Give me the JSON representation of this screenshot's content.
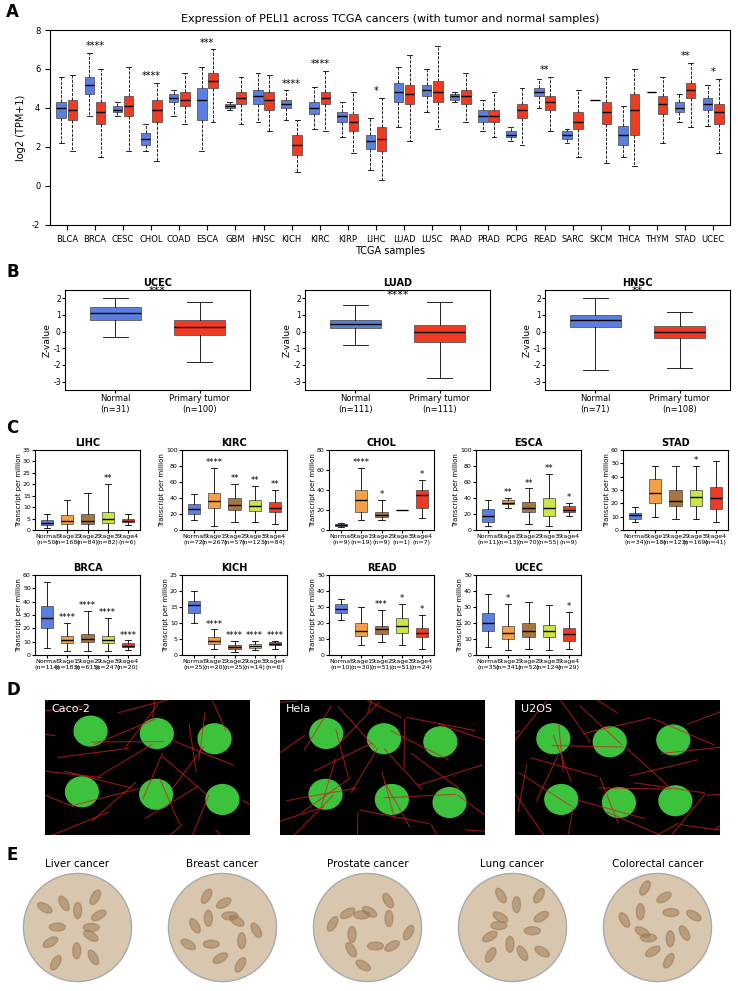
{
  "panel_labels": [
    "A",
    "B",
    "C",
    "D",
    "E"
  ],
  "chart_data": [
    {
      "type": "box",
      "title": "Expression of PELI1 across TCGA cancers (with tumor and normal samples)",
      "xlabel": "TCGA samples",
      "ylabel": "log2 (TPM+1)",
      "ylim": [
        -2,
        8
      ],
      "yticks": [
        -2,
        0,
        2,
        4,
        6,
        8
      ],
      "categories": [
        "BLCA",
        "BRCA",
        "CESC",
        "CHOL",
        "COAD",
        "ESCA",
        "GBM",
        "HNSC",
        "KICH",
        "KIRC",
        "KIRP",
        "LIHC",
        "LUAD",
        "LUSC",
        "PAAD",
        "PRAD",
        "PCPG",
        "READ",
        "SARC",
        "SKCM",
        "THCA",
        "THYM",
        "STAD",
        "UCEC"
      ],
      "significance": [
        null,
        "****",
        null,
        "****",
        null,
        "***",
        null,
        null,
        "****",
        "****",
        null,
        "*",
        null,
        null,
        null,
        null,
        null,
        "**",
        null,
        null,
        null,
        null,
        "**",
        "*"
      ],
      "series": [
        {
          "color": "#5b7fe0",
          "boxes": [
            [
              2.2,
              3.5,
              4.0,
              4.3,
              5.6
            ],
            [
              3.6,
              4.7,
              5.2,
              5.6,
              6.8
            ],
            [
              3.6,
              3.8,
              3.9,
              4.1,
              4.3
            ],
            [
              1.8,
              2.1,
              2.4,
              2.7,
              3.2
            ],
            [
              3.6,
              4.3,
              4.5,
              4.7,
              4.9
            ],
            [
              1.8,
              3.4,
              4.4,
              5.0,
              6.1
            ],
            [
              3.9,
              4.0,
              4.1,
              4.2,
              4.3
            ],
            [
              3.3,
              4.2,
              4.6,
              4.9,
              5.8
            ],
            [
              3.4,
              4.0,
              4.2,
              4.4,
              4.9
            ],
            [
              2.9,
              3.7,
              4.0,
              4.3,
              5.1
            ],
            [
              2.5,
              3.3,
              3.6,
              3.8,
              4.3
            ],
            [
              0.8,
              1.9,
              2.3,
              2.6,
              3.5
            ],
            [
              3.0,
              4.3,
              4.8,
              5.3,
              6.1
            ],
            [
              3.8,
              4.6,
              4.9,
              5.2,
              6.0
            ],
            [
              4.3,
              4.4,
              4.6,
              4.7,
              4.8
            ],
            [
              2.8,
              3.3,
              3.6,
              3.9,
              4.4
            ],
            [
              2.3,
              2.5,
              2.6,
              2.8,
              3.0
            ],
            [
              4.0,
              4.6,
              4.8,
              5.0,
              5.5
            ],
            [
              2.2,
              2.4,
              2.6,
              2.8,
              2.9
            ],
            [
              4.4,
              4.4,
              4.4,
              4.4,
              4.4
            ],
            [
              1.5,
              2.1,
              2.6,
              3.1,
              4.1
            ],
            [
              4.8,
              4.8,
              4.8,
              4.8,
              4.8
            ],
            [
              3.3,
              3.8,
              4.0,
              4.3,
              4.7
            ],
            [
              3.1,
              3.9,
              4.2,
              4.5,
              5.2
            ]
          ]
        },
        {
          "color": "#ee3b22",
          "boxes": [
            [
              1.8,
              3.4,
              3.9,
              4.4,
              5.7
            ],
            [
              1.5,
              3.2,
              3.8,
              4.3,
              6.0
            ],
            [
              1.8,
              3.6,
              4.1,
              4.6,
              6.1
            ],
            [
              1.3,
              3.3,
              3.9,
              4.4,
              5.3
            ],
            [
              3.2,
              4.1,
              4.4,
              4.8,
              5.8
            ],
            [
              3.3,
              5.0,
              5.4,
              5.8,
              7.0
            ],
            [
              3.2,
              4.2,
              4.5,
              4.8,
              5.6
            ],
            [
              2.8,
              3.9,
              4.4,
              4.8,
              5.7
            ],
            [
              0.7,
              1.6,
              2.1,
              2.6,
              3.4
            ],
            [
              2.8,
              4.2,
              4.5,
              4.8,
              5.9
            ],
            [
              1.7,
              2.8,
              3.3,
              3.7,
              4.8
            ],
            [
              0.3,
              1.8,
              2.4,
              3.0,
              4.5
            ],
            [
              2.3,
              4.2,
              4.7,
              5.2,
              6.7
            ],
            [
              2.9,
              4.3,
              4.8,
              5.4,
              7.2
            ],
            [
              3.3,
              4.2,
              4.6,
              4.9,
              5.8
            ],
            [
              2.5,
              3.3,
              3.6,
              3.9,
              4.8
            ],
            [
              2.1,
              3.5,
              3.9,
              4.2,
              5.0
            ],
            [
              2.8,
              3.9,
              4.3,
              4.6,
              5.6
            ],
            [
              1.5,
              2.9,
              3.3,
              3.8,
              4.9
            ],
            [
              1.2,
              3.2,
              3.8,
              4.3,
              5.6
            ],
            [
              1.0,
              2.6,
              3.9,
              4.7,
              6.0
            ],
            [
              2.2,
              3.7,
              4.2,
              4.6,
              5.6
            ],
            [
              3.0,
              4.5,
              4.9,
              5.3,
              6.3
            ],
            [
              1.7,
              3.2,
              3.8,
              4.2,
              5.5
            ]
          ]
        }
      ]
    },
    {
      "type": "box",
      "title": "UCEC",
      "ylabel": "Z-value",
      "ylim": [
        -3.5,
        2.5
      ],
      "yticks": [
        -3,
        -2,
        -1,
        0,
        1,
        2
      ],
      "categories": [
        "Normal\n(n=31)",
        "Primary tumor\n(n=100)"
      ],
      "colors": [
        "#5b7fe0",
        "#ee3b22"
      ],
      "boxes": [
        [
          -0.3,
          0.7,
          1.1,
          1.5,
          2.0
        ],
        [
          -1.8,
          -0.2,
          0.3,
          0.7,
          1.8
        ]
      ],
      "significance": "***"
    },
    {
      "type": "box",
      "title": "LUAD",
      "ylabel": "Z-value",
      "ylim": [
        -3.5,
        2.5
      ],
      "yticks": [
        -3,
        -2,
        -1,
        0,
        1,
        2
      ],
      "categories": [
        "Normal\n(n=111)",
        "Primary tumor\n(n=111)"
      ],
      "colors": [
        "#5b7fe0",
        "#ee3b22"
      ],
      "boxes": [
        [
          -0.8,
          0.2,
          0.45,
          0.7,
          1.6
        ],
        [
          -2.8,
          -0.6,
          -0.05,
          0.4,
          1.8
        ]
      ],
      "significance": "****"
    },
    {
      "type": "box",
      "title": "HNSC",
      "ylabel": "Z-value",
      "ylim": [
        -3.5,
        2.5
      ],
      "yticks": [
        -3,
        -2,
        -1,
        0,
        1,
        2
      ],
      "categories": [
        "Normal\n(n=71)",
        "Primary tumor\n(n=108)"
      ],
      "colors": [
        "#5b7fe0",
        "#ee3b22"
      ],
      "boxes": [
        [
          -2.3,
          0.3,
          0.7,
          1.0,
          2.0
        ],
        [
          -2.2,
          -0.4,
          0.0,
          0.35,
          1.2
        ]
      ],
      "significance": "**"
    },
    {
      "type": "box",
      "title": "LIHC",
      "ylabel": "Transcript per million",
      "ylim": [
        0,
        35
      ],
      "yticks": [
        0,
        5,
        10,
        15,
        20,
        25,
        30,
        35
      ],
      "categories": [
        "Normal\n(n=50)",
        "Stage1\n(n=168)",
        "Stage2\n(n=84)",
        "Stage3\n(n=82)",
        "Stage4\n(n=6)"
      ],
      "colors": [
        "#5b7fe0",
        "#f5a046",
        "#a8743f",
        "#cde446",
        "#ee3b22"
      ],
      "boxes": [
        [
          1,
          2,
          3,
          4.5,
          7
        ],
        [
          0,
          2.5,
          4,
          6.5,
          13
        ],
        [
          0,
          2.5,
          4,
          7,
          16
        ],
        [
          0,
          3,
          5,
          8,
          20
        ],
        [
          2,
          3.5,
          4,
          5,
          7
        ]
      ],
      "significance": [
        null,
        null,
        null,
        "**",
        null
      ]
    },
    {
      "type": "box",
      "title": "KIRC",
      "ylabel": "Transcript per million",
      "ylim": [
        0,
        100
      ],
      "yticks": [
        0,
        20,
        40,
        60,
        80,
        100
      ],
      "categories": [
        "Normal\n(n=72)",
        "Stage1\n(n=267)",
        "Stage2\n(n=57)",
        "Stage3\n(n=123)",
        "Stage4\n(n=84)"
      ],
      "colors": [
        "#5b7fe0",
        "#f5a046",
        "#a8743f",
        "#cde446",
        "#ee3b22"
      ],
      "boxes": [
        [
          12,
          20,
          26,
          32,
          45
        ],
        [
          5,
          28,
          36,
          46,
          78
        ],
        [
          10,
          25,
          31,
          40,
          58
        ],
        [
          10,
          24,
          30,
          38,
          55
        ],
        [
          8,
          22,
          28,
          35,
          50
        ]
      ],
      "significance": [
        null,
        "****",
        "**",
        "**",
        "**"
      ]
    },
    {
      "type": "box",
      "title": "CHOL",
      "ylabel": "Transcript per million",
      "ylim": [
        0,
        80
      ],
      "yticks": [
        0,
        20,
        40,
        60,
        80
      ],
      "categories": [
        "Normal\n(n=9)",
        "Stage1\n(n=19)",
        "Stage2\n(n=9)",
        "Stage3\n(n=1)",
        "Stage4\n(n=7)"
      ],
      "colors": [
        "#5b7fe0",
        "#f5a046",
        "#a8743f",
        "#cde446",
        "#ee3b22"
      ],
      "boxes": [
        [
          3,
          4,
          5,
          6,
          7
        ],
        [
          10,
          18,
          30,
          40,
          62
        ],
        [
          10,
          13,
          15,
          18,
          30
        ],
        [
          20,
          20,
          20,
          20,
          20
        ],
        [
          12,
          22,
          35,
          40,
          50
        ]
      ],
      "significance": [
        null,
        "****",
        "*",
        null,
        "*"
      ]
    },
    {
      "type": "box",
      "title": "ESCA",
      "ylabel": "Transcript per million",
      "ylim": [
        0,
        100
      ],
      "yticks": [
        0,
        20,
        40,
        60,
        80,
        100
      ],
      "categories": [
        "Normal\n(n=11)",
        "Stage1\n(n=13)",
        "Stage2\n(n=70)",
        "Stage3\n(n=55)",
        "Stage4\n(n=9)"
      ],
      "colors": [
        "#5b7fe0",
        "#f5a046",
        "#a8743f",
        "#cde446",
        "#ee3b22"
      ],
      "boxes": [
        [
          5,
          10,
          18,
          26,
          38
        ],
        [
          28,
          32,
          34,
          38,
          40
        ],
        [
          8,
          22,
          28,
          35,
          52
        ],
        [
          5,
          18,
          28,
          40,
          70
        ],
        [
          18,
          22,
          25,
          30,
          34
        ]
      ],
      "significance": [
        null,
        "**",
        "**",
        "**",
        "*"
      ]
    },
    {
      "type": "box",
      "title": "STAD",
      "ylabel": "Transcript per million",
      "ylim": [
        0,
        60
      ],
      "yticks": [
        0,
        10,
        20,
        30,
        40,
        50,
        60
      ],
      "categories": [
        "Normal\n(n=34)",
        "Stage1\n(n=18)",
        "Stage2\n(n=123)",
        "Stage3\n(n=169)",
        "Stage4\n(n=41)"
      ],
      "colors": [
        "#5b7fe0",
        "#f5a046",
        "#a8743f",
        "#cde446",
        "#ee3b22"
      ],
      "boxes": [
        [
          6,
          8,
          11,
          13,
          17
        ],
        [
          10,
          20,
          28,
          38,
          48
        ],
        [
          8,
          18,
          22,
          30,
          48
        ],
        [
          8,
          18,
          25,
          30,
          48
        ],
        [
          6,
          16,
          24,
          32,
          52
        ]
      ],
      "significance": [
        null,
        null,
        null,
        "*",
        null
      ]
    },
    {
      "type": "box",
      "title": "BRCA",
      "ylabel": "Transcript per million",
      "ylim": [
        0,
        60
      ],
      "yticks": [
        0,
        10,
        20,
        30,
        40,
        50,
        60
      ],
      "categories": [
        "Normal\n(n=114)",
        "Stage1\n(n=183)",
        "Stage2\n(n=615)",
        "Stage3\n(n=247)",
        "Stage4\n(n=20)"
      ],
      "colors": [
        "#5b7fe0",
        "#f5a046",
        "#a8743f",
        "#cde446",
        "#ee3b22"
      ],
      "boxes": [
        [
          5,
          20,
          28,
          37,
          55
        ],
        [
          3,
          9,
          11,
          14,
          24
        ],
        [
          3,
          10,
          12,
          16,
          33
        ],
        [
          3,
          9,
          11,
          14,
          28
        ],
        [
          4,
          6,
          7,
          9,
          11
        ]
      ],
      "significance": [
        null,
        "****",
        "****",
        "****",
        "****"
      ]
    },
    {
      "type": "box",
      "title": "KICH",
      "ylabel": "Transcript per million",
      "ylim": [
        0,
        25
      ],
      "yticks": [
        0,
        5,
        10,
        15,
        20,
        25
      ],
      "categories": [
        "Normal\n(n=25)",
        "Stage1\n(n=20)",
        "Stage2\n(n=25)",
        "Stage3\n(n=14)",
        "Stage4\n(n=6)"
      ],
      "colors": [
        "#5b7fe0",
        "#f5a046",
        "#a8743f",
        "#cde446",
        "#ee3b22"
      ],
      "boxes": [
        [
          10,
          13,
          15.5,
          17,
          20
        ],
        [
          2,
          3.5,
          4.5,
          5.5,
          8
        ],
        [
          1,
          2,
          2.5,
          3,
          4.5
        ],
        [
          1.5,
          2.2,
          2.8,
          3.3,
          4.5
        ],
        [
          2,
          3,
          3.5,
          4,
          4.5
        ]
      ],
      "significance": [
        null,
        "****",
        "****",
        "****",
        "****"
      ]
    },
    {
      "type": "box",
      "title": "READ",
      "ylabel": "Transcript per million",
      "ylim": [
        0,
        50
      ],
      "yticks": [
        0,
        10,
        20,
        30,
        40,
        50
      ],
      "categories": [
        "Normal\n(n=10)",
        "Stage1\n(n=30)",
        "Stage2\n(n=51)",
        "Stage3\n(n=51)",
        "Stage4\n(n=24)"
      ],
      "colors": [
        "#5b7fe0",
        "#f5a046",
        "#a8743f",
        "#cde446",
        "#ee3b22"
      ],
      "boxes": [
        [
          22,
          26,
          29,
          32,
          35
        ],
        [
          6,
          12,
          15,
          20,
          30
        ],
        [
          8,
          13,
          16,
          18,
          28
        ],
        [
          6,
          14,
          18,
          23,
          32
        ],
        [
          4,
          11,
          14,
          17,
          25
        ]
      ],
      "significance": [
        null,
        null,
        "***",
        "*",
        "*"
      ]
    },
    {
      "type": "box",
      "title": "UCEC",
      "ylabel": "Transcript per million",
      "ylim": [
        0,
        50
      ],
      "yticks": [
        0,
        10,
        20,
        30,
        40,
        50
      ],
      "categories": [
        "Normal\n(n=35)",
        "Stage1\n(n=341)",
        "Stage2\n(n=52)",
        "Stage3\n(n=124)",
        "Stage4\n(n=29)"
      ],
      "colors": [
        "#5b7fe0",
        "#f5a046",
        "#a8743f",
        "#cde446",
        "#ee3b22"
      ],
      "boxes": [
        [
          5,
          15,
          20,
          26,
          38
        ],
        [
          3,
          10,
          14,
          18,
          32
        ],
        [
          4,
          11,
          15,
          20,
          33
        ],
        [
          3,
          11,
          15,
          19,
          31
        ],
        [
          4,
          9,
          13,
          17,
          27
        ]
      ],
      "significance": [
        null,
        "*",
        null,
        null,
        "*"
      ]
    }
  ],
  "images": {
    "D": [
      "Caco-2",
      "Hela",
      "U2OS"
    ],
    "E": [
      "Liver cancer",
      "Breast cancer",
      "Prostate cancer",
      "Lung cancer",
      "Colorectal cancer"
    ]
  }
}
